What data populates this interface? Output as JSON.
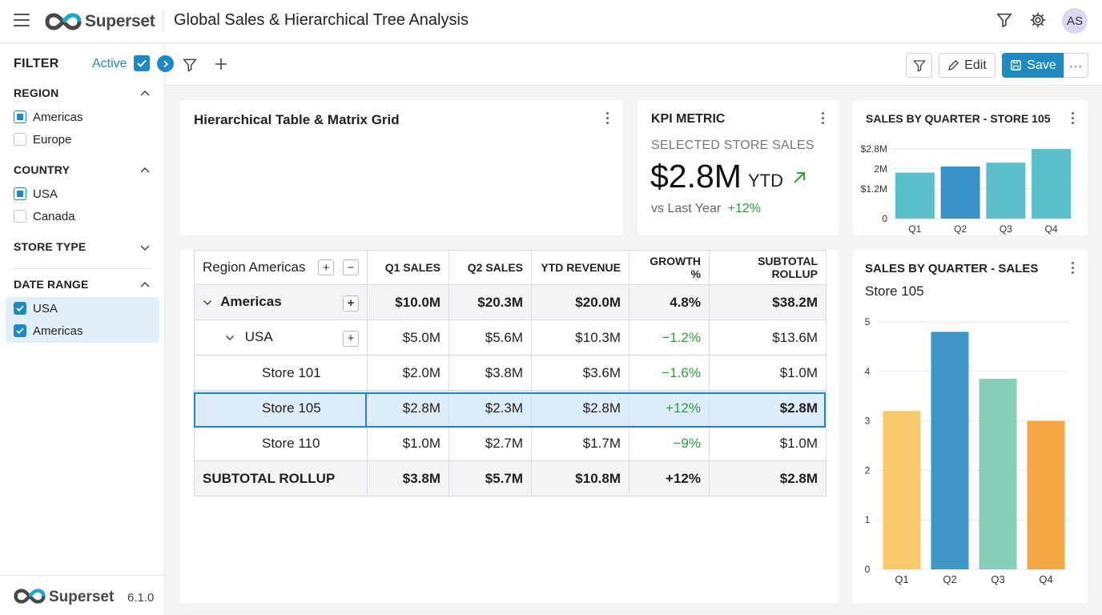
{
  "header": {
    "app_name": "Superset",
    "dashboard_title": "Global Sales & Hierarchical Tree Analysis",
    "avatar_initials": "AS",
    "icons": [
      "menu-icon",
      "filter-icon",
      "gear-icon"
    ]
  },
  "toolbar": {
    "edit_label": "Edit",
    "save_label": "Save",
    "more_label": "···"
  },
  "sidebar": {
    "filter_label": "FILTER",
    "active_label": "Active",
    "sections": {
      "region": {
        "title": "REGION",
        "options": [
          "Americas",
          "Europe"
        ]
      },
      "country": {
        "title": "COUNTRY",
        "options": [
          "USA",
          "Canada"
        ]
      },
      "store_type": {
        "title": "STORE TYPE"
      },
      "date_range": {
        "title": "DATE RANGE",
        "options": [
          "USA",
          "Americas"
        ]
      }
    },
    "footer": {
      "brand": "Superset",
      "version": "6.1.0"
    }
  },
  "cards": {
    "table": {
      "title": "Hierarchical Table & Matrix Grid",
      "corner_label": "Region Americas",
      "plus": "+",
      "minus": "−",
      "columns": [
        "Q1 SALES",
        "Q2 SALES",
        "YTD REVENUE",
        "GROWTH %",
        "SUBTOTAL ROLLUP"
      ],
      "rows": {
        "americas": {
          "label": "Americas",
          "values": [
            "$10.0M",
            "$20.3M",
            "$20.0M",
            "4.8%",
            "$38.2M"
          ]
        },
        "usa": {
          "label": "USA",
          "values": [
            "$5.0M",
            "$5.6M",
            "$10.3M",
            "−1.2%",
            "$13.6M"
          ]
        },
        "store101": {
          "label": "Store 101",
          "values": [
            "$2.0M",
            "$3.8M",
            "$3.6M",
            "−1.6%",
            "$1.0M"
          ]
        },
        "store105": {
          "label": "Store 105",
          "values": [
            "$2.8M",
            "$2.3M",
            "$2.8M",
            "+12%",
            "$2.8M"
          ]
        },
        "store110": {
          "label": "Store 110",
          "values": [
            "$1.0M",
            "$2.7M",
            "$1.7M",
            "−9%",
            "$1.0M"
          ]
        },
        "total": {
          "label": "SUBTOTAL ROLLUP",
          "values": [
            "$3.8M",
            "$5.7M",
            "$10.8M",
            "+12%",
            "$2.8M"
          ]
        }
      }
    },
    "kpi": {
      "title": "KPI METRIC",
      "subtitle": "SELECTED STORE SALES",
      "value": "$2.8M",
      "suffix": "YTD",
      "comparison_label": "vs Last Year",
      "comparison_value": "+12%",
      "trend_icon": "arrow-up-right-icon",
      "accent": "#2e9e3e"
    },
    "chart_small": {
      "title": "SALES BY QUARTER - STORE 105"
    },
    "chart_large": {
      "title": "SALES BY QUARTER - SALES",
      "subtitle": "Store 105"
    }
  },
  "colors": {
    "primary": "#1f8ac2",
    "positive": "#2e9e3e",
    "selected_row": "#dcecf8"
  },
  "chart_data": [
    {
      "type": "bar",
      "title": "SALES BY QUARTER - STORE 105",
      "categories": [
        "Q1",
        "Q2",
        "Q3",
        "Q4"
      ],
      "values": [
        1.85,
        2.1,
        2.25,
        2.8
      ],
      "ytick_labels": [
        "0",
        "$1.2M",
        "2M",
        "$2.8M"
      ],
      "yticks": [
        0,
        1.2,
        2.0,
        2.8
      ],
      "ylim": [
        0,
        2.9
      ],
      "colors": [
        "#5bc0c9",
        "#3a93c8",
        "#5bc0c9",
        "#5bc0c9"
      ],
      "grid": true
    },
    {
      "type": "bar",
      "title": "SALES BY QUARTER - SALES",
      "subtitle": "Store 105",
      "categories": [
        "Q1",
        "Q2",
        "Q3",
        "Q4"
      ],
      "values": [
        3.2,
        4.8,
        3.85,
        3.0
      ],
      "yticks": [
        0,
        1,
        2,
        3,
        4,
        5
      ],
      "ylim": [
        0,
        5
      ],
      "colors": [
        "#f8ca6b",
        "#4196c8",
        "#87cdb9",
        "#f5a845"
      ],
      "grid": true
    }
  ]
}
